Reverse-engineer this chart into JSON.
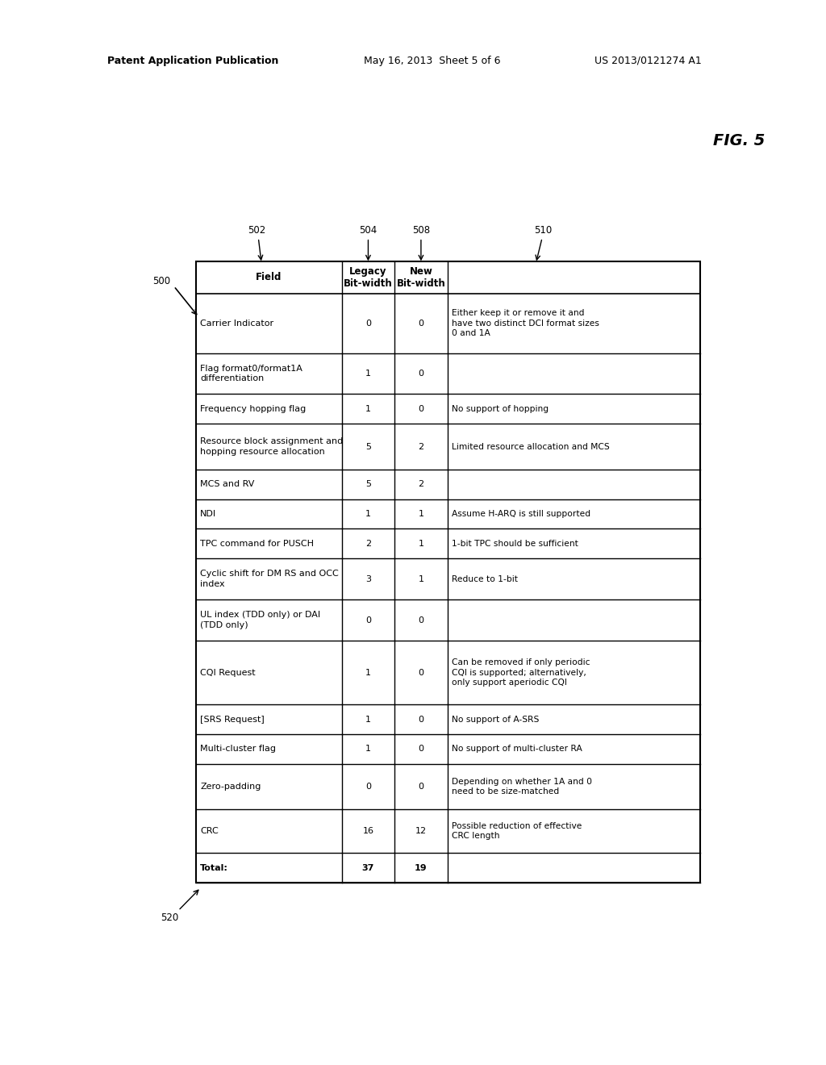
{
  "header_text_left": "Patent Application Publication",
  "header_text_mid": "May 16, 2013  Sheet 5 of 6",
  "header_text_right": "US 2013/0121274 A1",
  "fig_label": "FIG. 5",
  "rows": [
    {
      "field": "Carrier Indicator",
      "legacy": "0",
      "new_bw": "0",
      "comment": "Either keep it or remove it and\nhave two distinct DCI format sizes\n0 and 1A"
    },
    {
      "field": "Flag format0/format1A\ndifferentiation",
      "legacy": "1",
      "new_bw": "0",
      "comment": ""
    },
    {
      "field": "Frequency hopping flag",
      "legacy": "1",
      "new_bw": "0",
      "comment": "No support of hopping"
    },
    {
      "field": "Resource block assignment and\nhopping resource allocation",
      "legacy": "5",
      "new_bw": "2",
      "comment": "Limited resource allocation and MCS"
    },
    {
      "field": "MCS and RV",
      "legacy": "5",
      "new_bw": "2",
      "comment": ""
    },
    {
      "field": "NDI",
      "legacy": "1",
      "new_bw": "1",
      "comment": "Assume H-ARQ is still supported"
    },
    {
      "field": "TPC command for PUSCH",
      "legacy": "2",
      "new_bw": "1",
      "comment": "1-bit TPC should be sufficient"
    },
    {
      "field": "Cyclic shift for DM RS and OCC\nindex",
      "legacy": "3",
      "new_bw": "1",
      "comment": "Reduce to 1-bit"
    },
    {
      "field": "UL index (TDD only) or DAI\n(TDD only)",
      "legacy": "0",
      "new_bw": "0",
      "comment": ""
    },
    {
      "field": "CQI Request",
      "legacy": "1",
      "new_bw": "0",
      "comment": "Can be removed if only periodic\nCQI is supported; alternatively,\nonly support aperiodic CQI"
    },
    {
      "field": "[SRS Request]",
      "legacy": "1",
      "new_bw": "0",
      "comment": "No support of A-SRS"
    },
    {
      "field": "Multi-cluster flag",
      "legacy": "1",
      "new_bw": "0",
      "comment": "No support of multi-cluster RA"
    },
    {
      "field": "Zero-padding",
      "legacy": "0",
      "new_bw": "0",
      "comment": "Depending on whether 1A and 0\nneed to be size-matched"
    },
    {
      "field": "CRC",
      "legacy": "16",
      "new_bw": "12",
      "comment": "Possible reduction of effective\nCRC length"
    },
    {
      "field": "Total:",
      "legacy": "37",
      "new_bw": "19",
      "comment": "",
      "is_total": true
    }
  ],
  "bg_color": "#ffffff",
  "line_color": "#000000",
  "text_color": "#000000",
  "cell_fontsize": 8.0,
  "header_fontsize": 8.5,
  "row_h_weights": [
    2.6,
    1.8,
    1.3,
    2.0,
    1.3,
    1.3,
    1.3,
    1.8,
    1.8,
    2.8,
    1.3,
    1.3,
    2.0,
    1.9,
    1.3
  ]
}
